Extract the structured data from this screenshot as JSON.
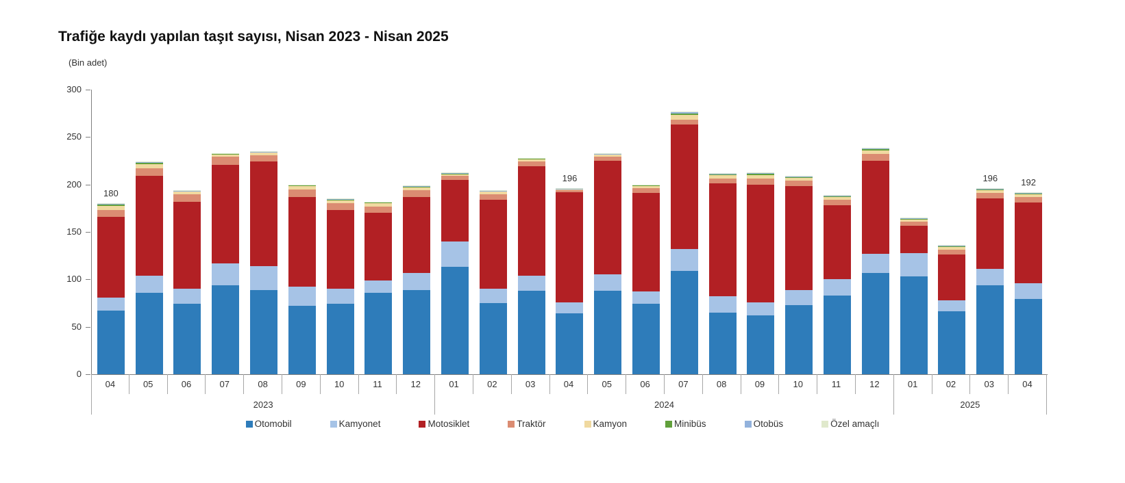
{
  "title": "Trafiğe kaydı yapılan taşıt sayısı, Nisan 2023 - Nisan 2025",
  "unit_label": "(Bin adet)",
  "chart_data": {
    "type": "bar",
    "stacked": true,
    "title": "Trafiğe kaydı yapılan taşıt sayısı, Nisan 2023 - Nisan 2025",
    "ylabel": "(Bin adet)",
    "ylim": [
      0,
      300
    ],
    "yticks": [
      0,
      50,
      100,
      150,
      200,
      250,
      300
    ],
    "grid": false,
    "legend_position": "bottom",
    "series": [
      {
        "key": "otomobil",
        "name": "Otomobil",
        "color": "#2E7CBA"
      },
      {
        "key": "kamyonet",
        "name": "Kamyonet",
        "color": "#A6C3E6"
      },
      {
        "key": "motosiklet",
        "name": "Motosiklet",
        "color": "#B22024"
      },
      {
        "key": "traktor",
        "name": "Traktör",
        "color": "#DB8C72"
      },
      {
        "key": "kamyon",
        "name": "Kamyon",
        "color": "#F0D9A0"
      },
      {
        "key": "minibus",
        "name": "Minibüs",
        "color": "#61A03B"
      },
      {
        "key": "otobus",
        "name": "Otobüs",
        "color": "#92B2DC"
      },
      {
        "key": "ozel_amacli",
        "name": "Özel amaçlı",
        "color": "#E0E9CC"
      }
    ],
    "groups": [
      {
        "year": "2023",
        "months": [
          "04",
          "05",
          "06",
          "07",
          "08",
          "09",
          "10",
          "11",
          "12"
        ]
      },
      {
        "year": "2024",
        "months": [
          "01",
          "02",
          "03",
          "04",
          "05",
          "06",
          "07",
          "08",
          "09",
          "10",
          "11",
          "12"
        ]
      },
      {
        "year": "2025",
        "months": [
          "01",
          "02",
          "03",
          "04"
        ]
      }
    ],
    "bars": [
      {
        "year": "2023",
        "month": "04",
        "label": "180",
        "values": [
          67,
          14,
          85,
          7,
          4.5,
          1.2,
          0.6,
          0.7
        ]
      },
      {
        "year": "2023",
        "month": "05",
        "label": "",
        "values": [
          86,
          18,
          105,
          8,
          4.5,
          1.2,
          0.6,
          0.7
        ]
      },
      {
        "year": "2023",
        "month": "06",
        "label": "",
        "values": [
          74,
          16,
          92,
          7.5,
          3,
          0.7,
          0.4,
          0.4
        ]
      },
      {
        "year": "2023",
        "month": "07",
        "label": "",
        "values": [
          94,
          23,
          104,
          8,
          2.5,
          0.7,
          0.4,
          0.4
        ]
      },
      {
        "year": "2023",
        "month": "08",
        "label": "",
        "values": [
          89,
          25,
          110,
          7,
          2.5,
          0.7,
          0.4,
          0.4
        ]
      },
      {
        "year": "2023",
        "month": "09",
        "label": "",
        "values": [
          72,
          20,
          95,
          8,
          3,
          1,
          0.5,
          0.5
        ]
      },
      {
        "year": "2023",
        "month": "10",
        "label": "",
        "values": [
          74,
          16,
          83,
          7,
          3,
          1,
          0.5,
          0.5
        ]
      },
      {
        "year": "2023",
        "month": "11",
        "label": "",
        "values": [
          86,
          13,
          71,
          7,
          3,
          1,
          0.5,
          0.5
        ]
      },
      {
        "year": "2023",
        "month": "12",
        "label": "",
        "values": [
          89,
          18,
          80,
          7,
          3,
          1,
          0.5,
          0.5
        ]
      },
      {
        "year": "2024",
        "month": "01",
        "label": "",
        "values": [
          113,
          27,
          65,
          4,
          1.5,
          1,
          0.8,
          0.7
        ]
      },
      {
        "year": "2024",
        "month": "02",
        "label": "",
        "values": [
          75,
          15,
          94,
          6,
          2.5,
          0.7,
          0.4,
          0.4
        ]
      },
      {
        "year": "2024",
        "month": "03",
        "label": "",
        "values": [
          88,
          16,
          115,
          5.5,
          2,
          0.7,
          0.4,
          0.4
        ]
      },
      {
        "year": "2024",
        "month": "04",
        "label": "196",
        "values": [
          64,
          12,
          115.5,
          2.5,
          1,
          0.4,
          0.3,
          0.3
        ]
      },
      {
        "year": "2024",
        "month": "05",
        "label": "",
        "values": [
          88,
          17,
          120,
          4.5,
          2,
          0.6,
          0.4,
          0.5
        ]
      },
      {
        "year": "2024",
        "month": "06",
        "label": "",
        "values": [
          74,
          13,
          104,
          5,
          2.5,
          0.6,
          0.4,
          0.5
        ]
      },
      {
        "year": "2024",
        "month": "07",
        "label": "",
        "values": [
          109,
          23,
          131,
          5.5,
          5,
          1.5,
          0.9,
          1.1
        ]
      },
      {
        "year": "2024",
        "month": "08",
        "label": "",
        "values": [
          65,
          17,
          119,
          5.5,
          3.2,
          1,
          0.6,
          0.7
        ]
      },
      {
        "year": "2024",
        "month": "09",
        "label": "",
        "values": [
          62,
          14,
          124,
          6.5,
          3.5,
          1,
          0.9,
          1.1
        ]
      },
      {
        "year": "2024",
        "month": "10",
        "label": "",
        "values": [
          73,
          16,
          109,
          6,
          2.8,
          1,
          0.6,
          0.6
        ]
      },
      {
        "year": "2024",
        "month": "11",
        "label": "",
        "values": [
          83,
          17,
          78,
          6,
          2.8,
          1,
          0.6,
          0.6
        ]
      },
      {
        "year": "2024",
        "month": "12",
        "label": "",
        "values": [
          107,
          20,
          98,
          7,
          3.5,
          1.5,
          1,
          1
        ]
      },
      {
        "year": "2025",
        "month": "01",
        "label": "",
        "values": [
          103,
          25,
          28.5,
          4.5,
          2,
          0.8,
          0.6,
          0.6
        ]
      },
      {
        "year": "2025",
        "month": "02",
        "label": "",
        "values": [
          66,
          12,
          48.5,
          5,
          2.5,
          0.8,
          0.6,
          0.6
        ]
      },
      {
        "year": "2025",
        "month": "03",
        "label": "196",
        "values": [
          94,
          17,
          74,
          6,
          2.8,
          1,
          0.6,
          0.6
        ]
      },
      {
        "year": "2025",
        "month": "04",
        "label": "192",
        "values": [
          79,
          17,
          85,
          6,
          2.6,
          1,
          0.7,
          0.7
        ]
      }
    ]
  }
}
